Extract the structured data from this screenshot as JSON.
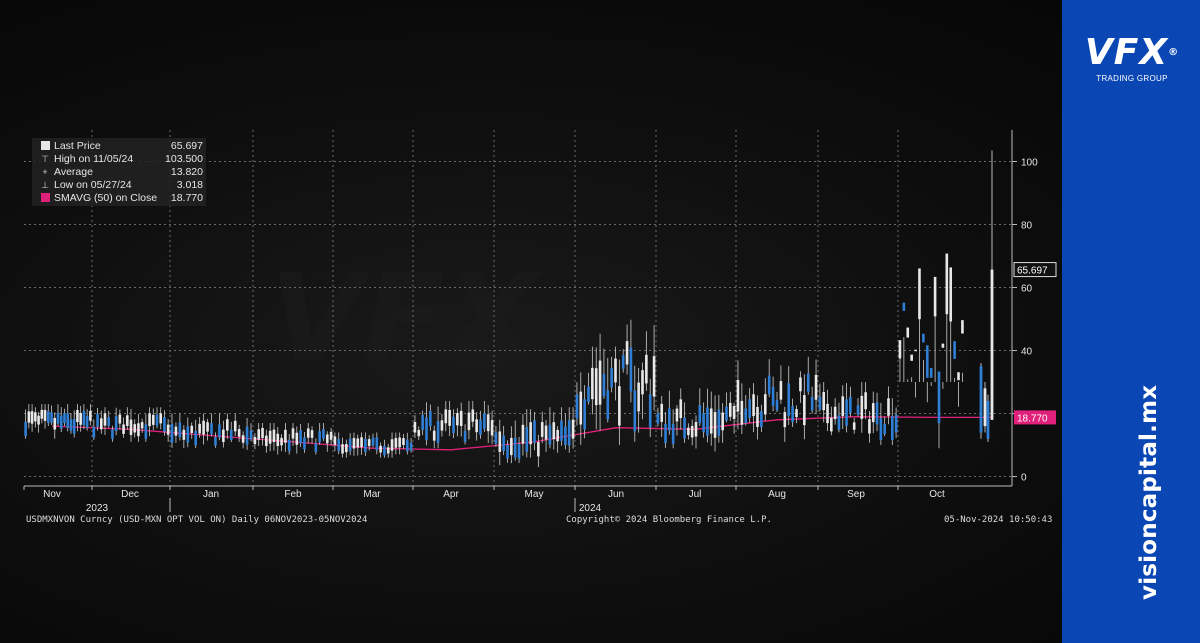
{
  "legend": {
    "rows": [
      {
        "label": "Last Price",
        "value": "65.697"
      },
      {
        "label": "High on 11/05/24",
        "value": "103.500"
      },
      {
        "label": "Average",
        "value": "13.820"
      },
      {
        "label": "Low on 05/27/24",
        "value": "3.018"
      },
      {
        "label": "SMAVG (50)  on Close",
        "value": "18.770"
      }
    ],
    "icons": [
      "last-price-swatch",
      "high-marker",
      "average-marker",
      "low-marker",
      "smavg-swatch"
    ]
  },
  "footer": {
    "ticker": "USDMXNVON Curncy (USD-MXN OPT VOL ON)  Daily 06NOV2023-05NOV2024",
    "copyright": "Copyright© 2024 Bloomberg Finance L.P.",
    "timestamp": "05-Nov-2024 10:50:43"
  },
  "branding": {
    "logo": "VFX",
    "registered": "®",
    "tagline": "TRADING GROUP",
    "url": "visioncapital.mx"
  },
  "colors": {
    "up_candle": "#e8e8e8",
    "down_candle": "#2f7fd6",
    "sma_line": "#e0207a",
    "grid": "#6a6a6a",
    "sidebar": "#0a47b4"
  },
  "chart_data": {
    "type": "candlestick",
    "y_ticks": [
      0,
      20,
      40,
      60,
      80,
      100
    ],
    "ylim": [
      -3,
      110
    ],
    "month_labels": [
      "Nov",
      "Dec",
      "Jan",
      "Feb",
      "Mar",
      "Apr",
      "May",
      "Jun",
      "Jul",
      "Aug",
      "Sep",
      "Oct"
    ],
    "year_labels": [
      {
        "label": "2023",
        "month_index": 0
      },
      {
        "label": "2024",
        "month_index": 7
      }
    ],
    "last_price_tag": "65.697",
    "sma_tag": "18.770",
    "monthly_range": [
      {
        "month": "Nov",
        "low": 12,
        "high": 23
      },
      {
        "month": "Dec",
        "low": 11,
        "high": 22
      },
      {
        "month": "Jan",
        "low": 8,
        "high": 20
      },
      {
        "month": "Feb",
        "low": 7,
        "high": 17
      },
      {
        "month": "Mar",
        "low": 6,
        "high": 14
      },
      {
        "month": "Apr",
        "low": 9,
        "high": 24
      },
      {
        "month": "May",
        "low": 3.018,
        "high": 22
      },
      {
        "month": "Jun",
        "low": 10,
        "high": 50
      },
      {
        "month": "Jul",
        "low": 8,
        "high": 28
      },
      {
        "month": "Aug",
        "low": 11,
        "high": 38
      },
      {
        "month": "Sep",
        "low": 10,
        "high": 30
      },
      {
        "month": "Oct",
        "low": 9,
        "high": 103.5
      }
    ],
    "sma50": [
      {
        "month": "Nov",
        "value": 16
      },
      {
        "month": "Dec",
        "value": 15
      },
      {
        "month": "Jan",
        "value": 13
      },
      {
        "month": "Feb",
        "value": 11
      },
      {
        "month": "Mar",
        "value": 9
      },
      {
        "month": "Apr",
        "value": 8.5
      },
      {
        "month": "May",
        "value": 11
      },
      {
        "month": "Jun",
        "value": 15.5
      },
      {
        "month": "Jul",
        "value": 15
      },
      {
        "month": "Aug",
        "value": 18
      },
      {
        "month": "Sep",
        "value": 19
      },
      {
        "month": "Oct",
        "value": 18.77
      }
    ],
    "last_price": 65.697,
    "high": 103.5,
    "average": 13.82,
    "low": 3.018
  }
}
